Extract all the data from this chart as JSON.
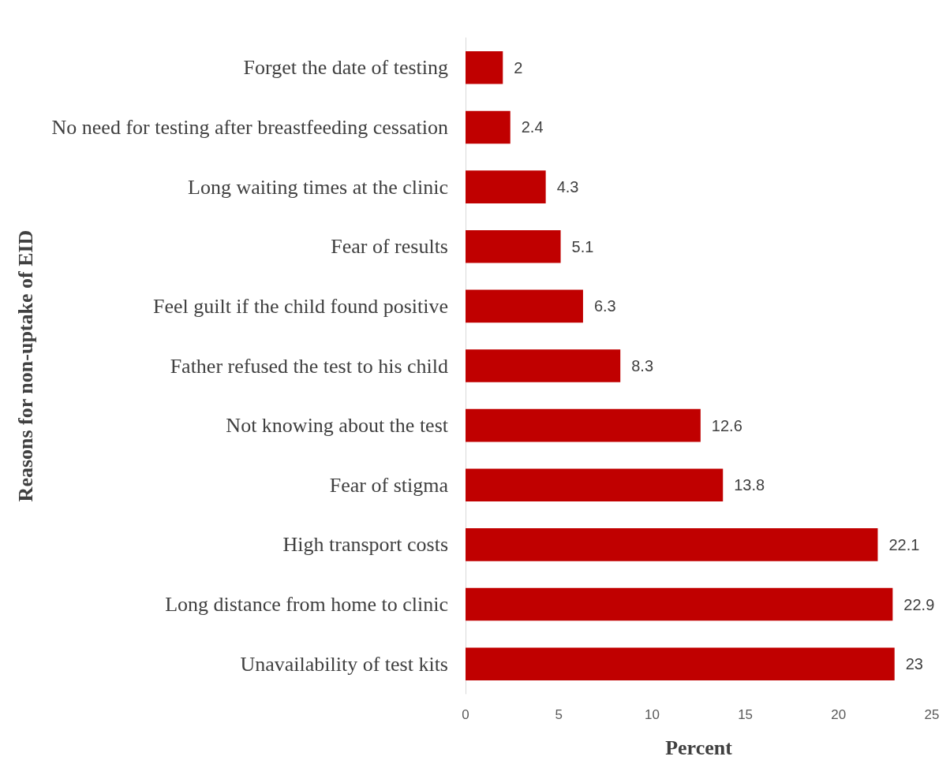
{
  "chart_data": {
    "type": "bar",
    "orientation": "horizontal",
    "xlabel": "Percent",
    "ylabel": "Reasons for non-uptake of EID",
    "categories": [
      "Forget the date of testing",
      "No need for testing after breastfeeding cessation",
      "Long waiting times at the clinic",
      "Fear of results",
      "Feel guilt if the child found positive",
      "Father refused the test to his child",
      "Not knowing about the test",
      "Fear of stigma",
      "High transport costs",
      "Long distance from home to clinic",
      "Unavailability of test kits"
    ],
    "values": [
      2,
      2.4,
      4.3,
      5.1,
      6.3,
      8.3,
      12.6,
      13.8,
      22.1,
      22.9,
      23
    ],
    "color": "#c00000",
    "xlim": [
      0,
      25
    ],
    "xticks": [
      0,
      5,
      10,
      15,
      20,
      25
    ],
    "data_labels": true
  }
}
